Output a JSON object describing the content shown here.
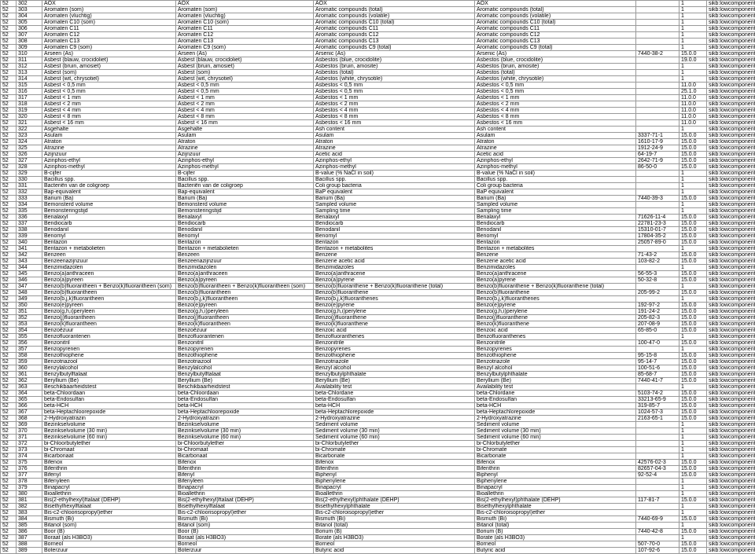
{
  "cols": [
    "c0",
    "c1",
    "c2",
    "c3",
    "c4",
    "c5",
    "c6",
    "c7",
    "c8"
  ],
  "rows": [
    [
      "52",
      "302",
      "AOX",
      "AOX",
      "AOX",
      "AOX",
      "",
      "1",
      "sikb:lowcomponent"
    ],
    [
      "52",
      "303",
      "Aromaten (som)",
      "Aromaten (som)",
      "Aromatic compounds (total)",
      "Aromatic compounds (total)",
      "",
      "1",
      "sikb:lowcomponent"
    ],
    [
      "52",
      "304",
      "Aromaten (vluchtig)",
      "Aromaten (vluchtig)",
      "Aromatic compounds (volatile)",
      "Aromatic compounds (volatile)",
      "",
      "1",
      "sikb:lowcomponent"
    ],
    [
      "52",
      "305",
      "Aromaten C10 (som)",
      "Aromaten C10 (som)",
      "Aromatic compounds C10 (total)",
      "Aromatic compounds C10 (total)",
      "",
      "1",
      "sikb:lowcomponent"
    ],
    [
      "52",
      "306",
      "Aromaten C11",
      "Aromaten C11",
      "Aromatic compounds C11",
      "Aromatic compounds C11",
      "",
      "1",
      "sikb:lowcomponent"
    ],
    [
      "52",
      "307",
      "Aromaten C12",
      "Aromaten C12",
      "Aromatic compounds C12",
      "Aromatic compounds C12",
      "",
      "1",
      "sikb:lowcomponent"
    ],
    [
      "52",
      "308",
      "Aromaten C13",
      "Aromaten C13",
      "Aromatic compounds C13",
      "Aromatic compounds C13",
      "",
      "1",
      "sikb:lowcomponent"
    ],
    [
      "52",
      "309",
      "Aromaten C9 (som)",
      "Aromaten C9 (som)",
      "Aromatic compounds C9 (total)",
      "Aromatic compounds C9 (total)",
      "",
      "1",
      "sikb:lowcomponent"
    ],
    [
      "52",
      "310",
      "Arseen (As)",
      "Arseen (As)",
      "Arsenic (As)",
      "Arsenic (As)",
      "7440-38-2",
      "15.0.0",
      "sikb:lowcomponent"
    ],
    [
      "52",
      "311",
      "Asbest (blauw, crocidoliet)",
      "Asbest (blauw, crocidoliet)",
      "Asbestos (blue, crocidolite)",
      "Asbestos (blue, crocidolite)",
      "",
      "19.0.0",
      "sikb:lowcomponent"
    ],
    [
      "52",
      "312",
      "Asbest (bruin, amosiet)",
      "Asbest (bruin, amosiet)",
      "Asbestos (bruin, amosite)",
      "Asbestos (bruin, amosite)",
      "",
      "1",
      "sikb:lowcomponent"
    ],
    [
      "52",
      "313",
      "Asbest (som)",
      "Asbest (som)",
      "Asbestos (total)",
      "Asbestos (total)",
      "",
      "1",
      "sikb:lowcomponent"
    ],
    [
      "52",
      "314",
      "Asbest (wit, chrysotiel)",
      "Asbest (wit, chrysotiel)",
      "Asbestos (white, chrysotile)",
      "Asbestos (white, chrysotile)",
      "",
      "1",
      "sikb:lowcomponent"
    ],
    [
      "52",
      "315",
      "Asbest < 0,5 mm",
      "Asbest < 0,5 mm",
      "Asbestos < 0,5 mm",
      "Asbestos < 0,5 mm",
      "",
      "11.0.0",
      "sikb:lowcomponent"
    ],
    [
      "52",
      "316",
      "Asbest < 0,5 mm",
      "Asbest < 0,5 mm",
      "Asbestos < 0,5 mm",
      "Asbestos < 0,5 mm",
      "",
      "25.1.0",
      "sikb:lowcomponent"
    ],
    [
      "52",
      "317",
      "Asbest < 1 mm",
      "Asbest < 1 mm",
      "Asbestos < 1 mm",
      "Asbestos < 1 mm",
      "",
      "11.0.0",
      "sikb:lowcomponent"
    ],
    [
      "52",
      "318",
      "Asbest < 2 mm",
      "Asbest < 2 mm",
      "Asbestos < 2 mm",
      "Asbestos < 2 mm",
      "",
      "11.0.0",
      "sikb:lowcomponent"
    ],
    [
      "52",
      "319",
      "Asbest < 4 mm",
      "Asbest < 4 mm",
      "Asbestos < 4 mm",
      "Asbestos < 4 mm",
      "",
      "11.0.0",
      "sikb:lowcomponent"
    ],
    [
      "52",
      "320",
      "Asbest < 8 mm",
      "Asbest < 8 mm",
      "Asbestos < 8 mm",
      "Asbestos < 8 mm",
      "",
      "11.0.0",
      "sikb:lowcomponent"
    ],
    [
      "52",
      "321",
      "Asbest < 16 mm",
      "Asbest < 16 mm",
      "Asbestos < 16 mm",
      "Asbestos < 16 mm",
      "",
      "11.0.0",
      "sikb:lowcomponent"
    ],
    [
      "52",
      "322",
      "Asgehalte",
      "Asgehalte",
      "Ash content",
      "Ash content",
      "",
      "1",
      "sikb:lowcomponent"
    ],
    [
      "52",
      "323",
      "Asulam",
      "Asulam",
      "Asulam",
      "Asulam",
      "3337-71-1",
      "15.0.0",
      "sikb:lowcomponent"
    ],
    [
      "52",
      "324",
      "Atraton",
      "Atraton",
      "Atraton",
      "Atraton",
      "1610-17-9",
      "15.0.0",
      "sikb:lowcomponent"
    ],
    [
      "52",
      "325",
      "Atrazine",
      "Atrazine",
      "Atrazine",
      "Atrazine",
      "1912-24-9",
      "15.0.0",
      "sikb:lowcomponent"
    ],
    [
      "52",
      "326",
      "Azijnzuur",
      "Azijnzuur",
      "Acetic acid",
      "Acetic acid",
      "64-19-7",
      "15.0.0",
      "sikb:lowcomponent"
    ],
    [
      "52",
      "327",
      "Azinphos-ethyl",
      "Azinphos-ethyl",
      "Azinphos-ethyl",
      "Azinphos-ethyl",
      "2642-71-9",
      "15.0.0",
      "sikb:lowcomponent"
    ],
    [
      "52",
      "328",
      "Azinphos-methyl",
      "Azinphos-methyl",
      "Azinphos-methyl",
      "Azinphos-methyl",
      "86-50-0",
      "15.0.0",
      "sikb:lowcomponent"
    ],
    [
      "52",
      "329",
      "B-cijfer",
      "B-cijfer",
      "B-value (% NaCl in soil)",
      "B-value (% NaCl in soil)",
      "",
      "1",
      "sikb:lowcomponent"
    ],
    [
      "52",
      "330",
      "Bacillus spp.",
      "Bacillus spp.",
      "Bacillus spp.",
      "Bacillus spp.",
      "",
      "1",
      "sikb:lowcomponent"
    ],
    [
      "52",
      "331",
      "Bacteriën van de coligroep",
      "Bacteriën van de coligroep",
      "Coli group bacteria",
      "Coli group bacteria",
      "",
      "1",
      "sikb:lowcomponent"
    ],
    [
      "52",
      "332",
      "Bap-equivalent",
      "Bap-equivalent",
      "BaP equivalent",
      "BaP equivalent",
      "",
      "1",
      "sikb:lowcomponent"
    ],
    [
      "52",
      "333",
      "Barium (Ba)",
      "Barium (Ba)",
      "Barium (Ba)",
      "Barium (Ba)",
      "7440-39-3",
      "15.0.0",
      "sikb:lowcomponent"
    ],
    [
      "52",
      "334",
      "Bemonsterd volume",
      "Bemonsterd volume",
      "Sampled volume",
      "Sampled volume",
      "",
      "1",
      "sikb:lowcomponent"
    ],
    [
      "52",
      "335",
      "Bemonsteringstijd",
      "Bemonsteringstijd",
      "Sampling time",
      "Sampling time",
      "",
      "1",
      "sikb:lowcomponent"
    ],
    [
      "52",
      "336",
      "Benalaxyl",
      "Benalaxyl",
      "Benalaxyl",
      "Benalaxyl",
      "71626-11-4",
      "15.0.0",
      "sikb:lowcomponent"
    ],
    [
      "52",
      "337",
      "Bendiocarb",
      "Bendiocarb",
      "Bendiocarb",
      "Bendiocarb",
      "22781-23-3",
      "15.0.0",
      "sikb:lowcomponent"
    ],
    [
      "52",
      "338",
      "Benodanil",
      "Benodanil",
      "Benodanil",
      "Benodanil",
      "15310-01-7",
      "15.0.0",
      "sikb:lowcomponent"
    ],
    [
      "52",
      "339",
      "Benomyl",
      "Benomyl",
      "Benomyl",
      "Benomyl",
      "17804-35-2",
      "15.0.0",
      "sikb:lowcomponent"
    ],
    [
      "52",
      "340",
      "Bentazon",
      "Bentazon",
      "Bentazon",
      "Bentazon",
      "25057-89-0",
      "15.0.0",
      "sikb:lowcomponent"
    ],
    [
      "52",
      "341",
      "Bentazon + metabolieten",
      "Bentazon + metabolieten",
      "Bentazon + metabolites",
      "Bentazon + metabolites",
      "",
      "1",
      "sikb:lowcomponent"
    ],
    [
      "52",
      "342",
      "Benzeen",
      "Benzeen",
      "Benzene",
      "Benzene",
      "71-43-2",
      "15.0.0",
      "sikb:lowcomponent"
    ],
    [
      "52",
      "343",
      "Benzeenazijnzuur",
      "Benzeenazijnzuur",
      "Benzene acetic acid",
      "Benzene acetic acid",
      "103-82-2",
      "15.0.0",
      "sikb:lowcomponent"
    ],
    [
      "52",
      "344",
      "Benzimidazolen",
      "Benzimidazolen",
      "Benzimidazoles",
      "Benzimidazoles",
      "",
      "1",
      "sikb:lowcomponent"
    ],
    [
      "52",
      "345",
      "Benzo(a)anthraceen",
      "Benzo(a)anthraceen",
      "Benzo(a)anthracene",
      "Benzo(a)anthracene",
      "56-55-3",
      "15.0.0",
      "sikb:lowcomponent"
    ],
    [
      "52",
      "346",
      "Benzo(a)pyreen",
      "Benzo(a)pyreen",
      "Benzo(a)pyrene",
      "Benzo(a)pyrene",
      "50-32-8",
      "15.0.0",
      "sikb:lowcomponent"
    ],
    [
      "52",
      "347",
      "Benzo(b)fluorantheen + Benzo(k)fluorantheen (som)",
      "Benzo(b)fluorantheen + Benzo(k)fluorantheen (som)",
      "Benzo(b)fluoranthene + Benzo(k)fluoranthene (total)",
      "Benzo(b)fluoranthene + Benzo(k)fluoranthene (total)",
      "",
      "1",
      "sikb:lowcomponent"
    ],
    [
      "52",
      "348",
      "Benzo(b)fluorantheen",
      "Benzo(b)fluorantheen",
      "Benzo(b)fluoranthene",
      "Benzo(b)fluoranthene",
      "205-99-2",
      "15.0.0",
      "sikb:lowcomponent"
    ],
    [
      "52",
      "349",
      "Benzo(b,j,k)fluorantheen",
      "Benzo(b,j,k)fluorantheen",
      "Benzo(b,j,k)fluoranthenes",
      "Benzo(b,j,k)fluoranthenes",
      "",
      "1",
      "sikb:lowcomponent"
    ],
    [
      "52",
      "350",
      "Benzo(e)pyreen",
      "Benzo(e)pyreen",
      "Benzo(e)pyrene",
      "Benzo(e)pyrene",
      "192-97-2",
      "15.0.0",
      "sikb:lowcomponent"
    ],
    [
      "52",
      "351",
      "Benzo(g,h,i)peryleen",
      "Benzo(g,h,i)peryleen",
      "Benzo(g,h,i)perylene",
      "Benzo(g,h,i)perylene",
      "191-24-2",
      "15.0.0",
      "sikb:lowcomponent"
    ],
    [
      "52",
      "352",
      "Benzo(j)fluorantheen",
      "Benzo(j)fluorantheen",
      "Benzo(j)fluoranthene",
      "Benzo(j)fluoranthene",
      "205-82-3",
      "15.0.0",
      "sikb:lowcomponent"
    ],
    [
      "52",
      "353",
      "Benzo(k)fluorantheen",
      "Benzo(k)fluorantheen",
      "Benzo(k)fluoranthene",
      "Benzo(k)fluoranthene",
      "207-08-9",
      "15.0.0",
      "sikb:lowcomponent"
    ],
    [
      "52",
      "354",
      "Benzoëzuur",
      "Benzoëzuur",
      "Benzoic acid",
      "Benzoic acid",
      "65-85-0",
      "15.0.0",
      "sikb:lowcomponent"
    ],
    [
      "52",
      "355",
      "Benzofluorantenen",
      "Benzofluorantenen",
      "Benzofluoranthenes",
      "Benzofluoranthenes",
      "",
      "1",
      "sikb:lowcomponent"
    ],
    [
      "52",
      "356",
      "Benzonitril",
      "Benzonitril",
      "Benzonitrile",
      "Benzonitrile",
      "100-47-0",
      "15.0.0",
      "sikb:lowcomponent"
    ],
    [
      "52",
      "357",
      "Benzopyrenen",
      "Benzopyrenen",
      "Benzopyrenes",
      "Benzopyrenes",
      "",
      "1",
      "sikb:lowcomponent"
    ],
    [
      "52",
      "358",
      "Benzothiophene",
      "Benzothiophene",
      "Benzothiophene",
      "Benzothiophene",
      "95-15-8",
      "15.0.0",
      "sikb:lowcomponent"
    ],
    [
      "52",
      "359",
      "Benzotriazool",
      "Benzotriazool",
      "Benzotriazole",
      "Benzotriazole",
      "95-14-7",
      "15.0.0",
      "sikb:lowcomponent"
    ],
    [
      "52",
      "360",
      "Benzylalcohol",
      "Benzylalcohol",
      "Benzyl alcohol",
      "Benzyl alcohol",
      "100-51-6",
      "15.0.0",
      "sikb:lowcomponent"
    ],
    [
      "52",
      "361",
      "Benzylbutylftalaat",
      "Benzylbutylftalaat",
      "Benzylbutylphthalate",
      "Benzylbutylphthalate",
      "85-68-7",
      "15.0.0",
      "sikb:lowcomponent"
    ],
    [
      "52",
      "362",
      "Beryllium (Be)",
      "Beryllium (Be)",
      "Beryllium (Be)",
      "Beryllium (Be)",
      "7440-41-7",
      "15.0.0",
      "sikb:lowcomponent"
    ],
    [
      "52",
      "363",
      "Beschikbaarheidstest",
      "Beschikbaarheidstest",
      "Availability test",
      "Availability test",
      "",
      "1",
      "sikb:lowcomponent"
    ],
    [
      "52",
      "364",
      "beta-Chloordaan",
      "beta-Chloordaan",
      "beta-Chlordane",
      "beta-Chlordane",
      "5103-74-2",
      "15.0.0",
      "sikb:lowcomponent"
    ],
    [
      "52",
      "365",
      "beta-Endosulfan",
      "beta-Endosulfan",
      "beta-Endosulfan",
      "beta-Endosulfan",
      "33213-65-9",
      "15.0.0",
      "sikb:lowcomponent"
    ],
    [
      "52",
      "366",
      "beta-HCH",
      "beta-HCH",
      "beta-HCH",
      "beta-HCH",
      "319-85-7",
      "15.0.0",
      "sikb:lowcomponent"
    ],
    [
      "52",
      "367",
      "beta-Heptachloorepoxide",
      "beta-Heptachloorepoxide",
      "beta-Heptachlorepoxide",
      "beta-Heptachlorepoxide",
      "1024-57-3",
      "15.0.0",
      "sikb:lowcomponent"
    ],
    [
      "52",
      "368",
      "2-Hydroxyatrazin",
      "2-Hydroxyatrazin",
      "2-Hydroxyatrazine",
      "2-Hydroxyatrazine",
      "2163-65-1",
      "15.0.0",
      "sikb:lowcomponent"
    ],
    [
      "52",
      "369",
      "Bezinkselvolume",
      "Bezinkselvolume",
      "Sediment volume",
      "Sediment volume",
      "",
      "1",
      "sikb:lowcomponent"
    ],
    [
      "52",
      "370",
      "Bezinkselvolume (30 min)",
      "Bezinkselvolume (30 min)",
      "Sediment volume (30 min)",
      "Sediment volume (30 min)",
      "",
      "1",
      "sikb:lowcomponent"
    ],
    [
      "52",
      "371",
      "Bezinkselvolume (60 min)",
      "Bezinkselvolume (60 min)",
      "Sediment volume (60 min)",
      "Sediment volume (60 min)",
      "",
      "1",
      "sikb:lowcomponent"
    ],
    [
      "52",
      "372",
      "bi-Chloorbutylether",
      "bi-Chloorbutylether",
      "bi-Chlorbutylether",
      "bi-Chlorbutylether",
      "",
      "1",
      "sikb:lowcomponent"
    ],
    [
      "52",
      "373",
      "bi-Chromaat",
      "bi-Chromaat",
      "bi-Chromate",
      "bi-Chromate",
      "",
      "1",
      "sikb:lowcomponent"
    ],
    [
      "52",
      "374",
      "Bicarbonaat",
      "Bicarbonaat",
      "Bicarbonate",
      "Bicarbonate",
      "",
      "1",
      "sikb:lowcomponent"
    ],
    [
      "52",
      "375",
      "Bifenox",
      "Bifenox",
      "Bifenox",
      "Bifenox",
      "42576-02-3",
      "15.0.0",
      "sikb:lowcomponent"
    ],
    [
      "52",
      "376",
      "Bifenthrin",
      "Bifenthrin",
      "Bifenthrin",
      "Bifenthrin",
      "82657-04-3",
      "15.0.0",
      "sikb:lowcomponent"
    ],
    [
      "52",
      "377",
      "Bifenyl",
      "Bifenyl",
      "Biphenyl",
      "Biphenyl",
      "92-52-4",
      "15.0.0",
      "sikb:lowcomponent"
    ],
    [
      "52",
      "378",
      "Bifenyleen",
      "Bifenyleen",
      "Biphenylene",
      "Biphenylene",
      "",
      "1",
      "sikb:lowcomponent"
    ],
    [
      "52",
      "379",
      "Binapacryl",
      "Binapacryl",
      "Binapacryl",
      "Binapacryl",
      "",
      "1",
      "sikb:lowcomponent"
    ],
    [
      "52",
      "380",
      "Bioallethrin",
      "Bioallethrin",
      "Bioallethrin",
      "Bioallethrin",
      "",
      "1",
      "sikb:lowcomponent"
    ],
    [
      "52",
      "381",
      "Bis(2-ethylhexyl)ftalaat (DEHP)",
      "Bis(2-ethylhexyl)ftalaat (DEHP)",
      "Bis(2-ethylhexyl)phthalate (DEHP)",
      "Bis(2-ethylhexyl)phthalate (DEHP)",
      "117-81-7",
      "15.0.0",
      "sikb:lowcomponent"
    ],
    [
      "52",
      "382",
      "Bisethylhexylftalaat",
      "Bisethylhexylftalaat",
      "Bisethylhexylphthalate",
      "Bisethylhexylphthalate",
      "",
      "1",
      "sikb:lowcomponent"
    ],
    [
      "52",
      "383",
      "Bis-c2-chloorisopropyl)ether",
      "Bis-c2-chloorisopropyl)ether",
      "Bis-c2-chloroisopropyl)ether",
      "Bis-c2-chloroisopropyl)ether",
      "",
      "1",
      "sikb:lowcomponent"
    ],
    [
      "52",
      "384",
      "Bismuth (Bi)",
      "Bismuth (Bi)",
      "Bismuth (Bi)",
      "Bismuth (Bi)",
      "7440-69-9",
      "15.0.0",
      "sikb:lowcomponent"
    ],
    [
      "52",
      "385",
      "Bitanol (som)",
      "Bitanol (som)",
      "Bitanol (total)",
      "Bitanol (total)",
      "",
      "1",
      "sikb:lowcomponent"
    ],
    [
      "52",
      "386",
      "Boor (B)",
      "Boor (B)",
      "Borium (B)",
      "Borium (B)",
      "7440-42-8",
      "15.0.0",
      "sikb:lowcomponent"
    ],
    [
      "52",
      "387",
      "Boraat (als H3BO3)",
      "Boraat (als H3BO3)",
      "Borate (als H3BO3)",
      "Borate (als H3BO3)",
      "",
      "1",
      "sikb:lowcomponent"
    ],
    [
      "52",
      "388",
      "Borneol",
      "Borneol",
      "Borneol",
      "Borneol",
      "507-70-0",
      "15.0.0",
      "sikb:lowcomponent"
    ],
    [
      "52",
      "389",
      "Boterzuur",
      "Boterzuur",
      "Butyric acid",
      "Butyric acid",
      "107-92-6",
      "15.0.0",
      "sikb:lowcomponent"
    ]
  ]
}
